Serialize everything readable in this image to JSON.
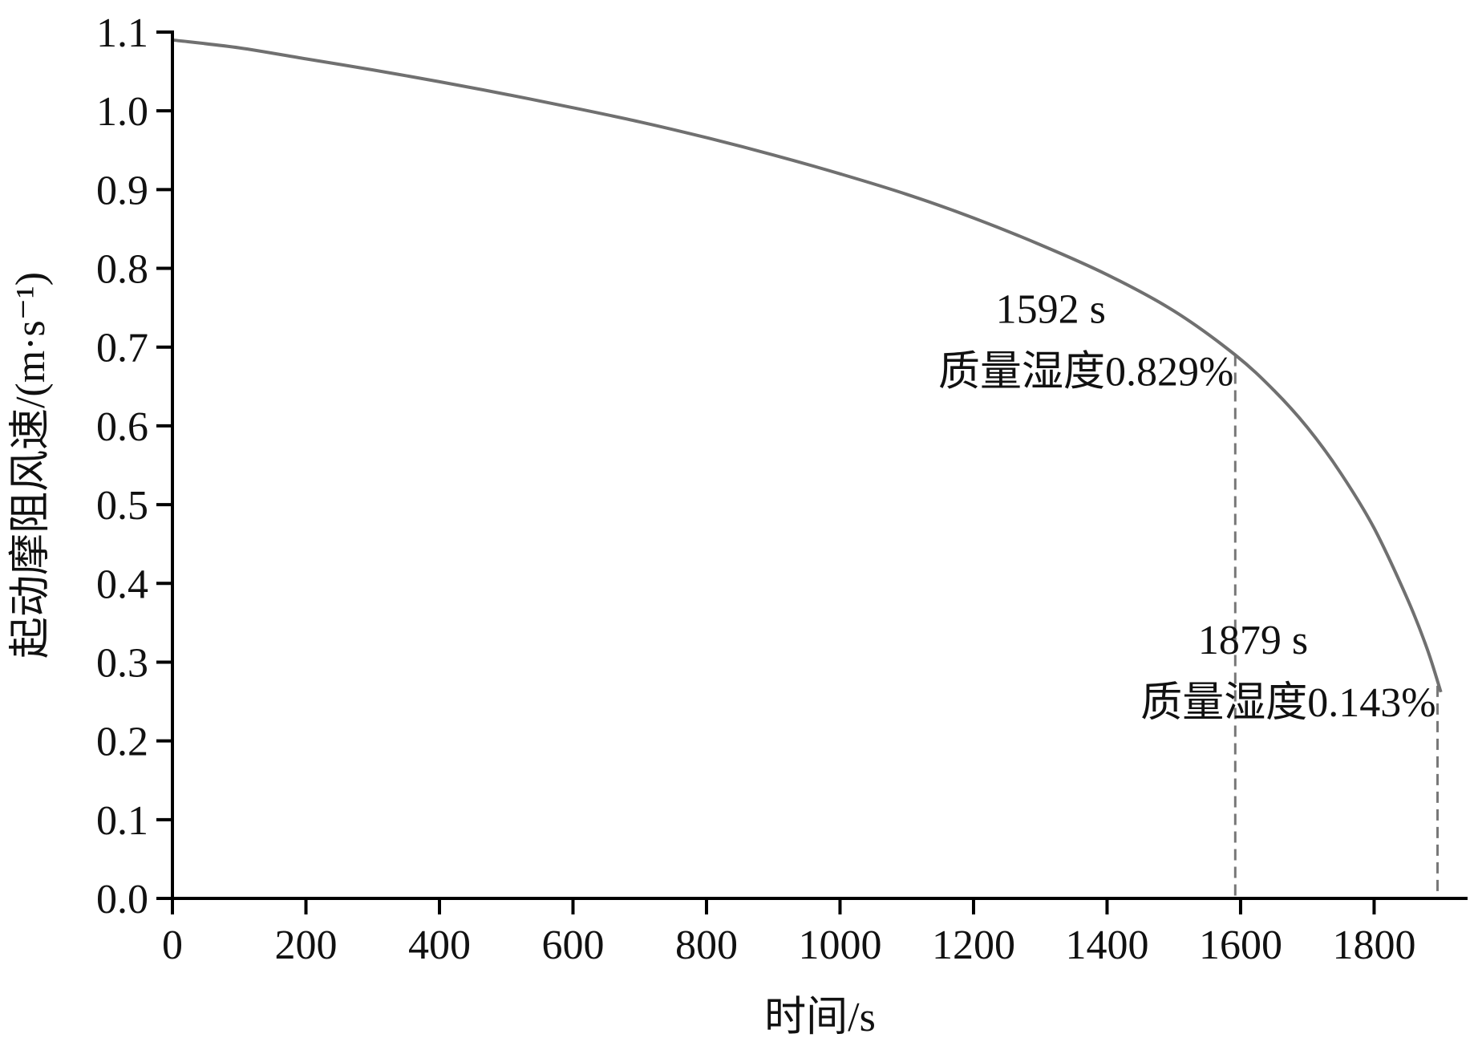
{
  "chart_data": {
    "type": "line",
    "xlabel": "时间/s",
    "ylabel": "起动摩阻风速/(m·s⁻¹)",
    "xlim": [
      0,
      1940
    ],
    "ylim": [
      0,
      1.1
    ],
    "x_ticks": [
      0,
      200,
      400,
      600,
      800,
      1000,
      1200,
      1400,
      1600,
      1800
    ],
    "y_ticks": [
      0.0,
      0.1,
      0.2,
      0.3,
      0.4,
      0.5,
      0.6,
      0.7,
      0.8,
      0.9,
      1.0,
      1.1
    ],
    "y_tick_labels": [
      "0.0",
      "0.1",
      "0.2",
      "0.3",
      "0.4",
      "0.5",
      "0.6",
      "0.7",
      "0.8",
      "0.9",
      "1.0",
      "1.1"
    ],
    "grid": false,
    "line_color": "#707070",
    "series": [
      {
        "x": [
          0,
          100,
          200,
          300,
          400,
          500,
          600,
          700,
          800,
          900,
          1000,
          1100,
          1200,
          1300,
          1400,
          1500,
          1592,
          1650,
          1700,
          1750,
          1800,
          1850,
          1879,
          1900
        ],
        "y": [
          1.09,
          1.08,
          1.066,
          1.052,
          1.037,
          1.021,
          1.004,
          0.986,
          0.966,
          0.944,
          0.92,
          0.894,
          0.864,
          0.83,
          0.792,
          0.746,
          0.69,
          0.645,
          0.598,
          0.54,
          0.47,
          0.38,
          0.318,
          0.262
        ]
      }
    ],
    "annotations": [
      {
        "x": 1592,
        "y": 0.69,
        "time_label": "1592 s",
        "moisture_label": "质量湿度0.829%"
      },
      {
        "x": 1895,
        "y": 0.27,
        "time_label": "1879 s",
        "moisture_label": "质量湿度0.143%"
      }
    ]
  }
}
